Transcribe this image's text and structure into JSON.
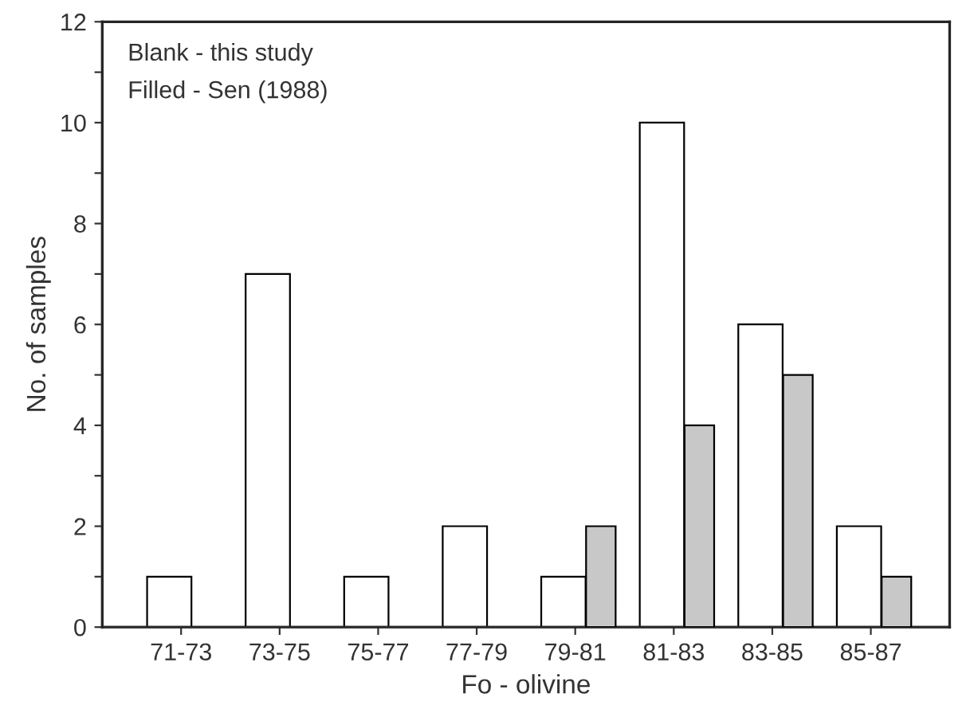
{
  "chart_data": {
    "type": "bar",
    "xlabel": "Fo - olivine",
    "ylabel": "No. of samples",
    "categories": [
      "71-73",
      "73-75",
      "75-77",
      "77-79",
      "79-81",
      "81-83",
      "83-85",
      "85-87"
    ],
    "series": [
      {
        "color": "#ffffff",
        "values": [
          1,
          7,
          1,
          2,
          1,
          10,
          6,
          2
        ]
      },
      {
        "color": "#c8c8c8",
        "values": [
          null,
          null,
          null,
          null,
          2,
          4,
          5,
          1
        ]
      }
    ],
    "ylim": [
      0,
      12
    ],
    "yticks": [
      0,
      {
        "value": 1,
        "label": null
      },
      2,
      {
        "value": 3,
        "label": null
      },
      4,
      {
        "value": 5,
        "label": null
      },
      6,
      {
        "value": 7,
        "label": null
      },
      8,
      {
        "value": 9,
        "label": null
      },
      10,
      {
        "value": 11,
        "label": null
      },
      12
    ],
    "annotations": [
      "Blank - this study",
      "Filled - Sen (1988)"
    ],
    "grid": false,
    "legend": false
  }
}
